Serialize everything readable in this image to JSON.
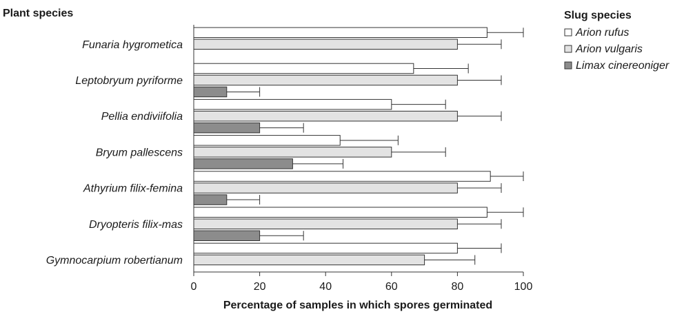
{
  "chart_data": {
    "type": "bar",
    "orientation": "horizontal",
    "title": "",
    "ylabel": "Plant species",
    "xlabel": "Percentage of samples in which spores germinated",
    "xlim": [
      0,
      100
    ],
    "xticks": [
      0,
      20,
      40,
      60,
      80,
      100
    ],
    "categories": [
      "Funaria hygrometica",
      "Leptobryum pyriforme",
      "Pellia endiviifolia",
      "Bryum pallescens",
      "Athyrium filix-femina",
      "Dryopteris filix-mas",
      "Gymnocarpium robertianum"
    ],
    "legend_title": "Slug species",
    "legend_position": "top-right",
    "grid": false,
    "error_bars": true,
    "series": [
      {
        "name": "Arion rufus",
        "color": "#ffffff",
        "values": [
          89,
          66.7,
          60,
          44.4,
          90,
          89,
          80
        ],
        "errors": [
          11,
          16.6,
          16.4,
          17.6,
          10,
          11,
          13.3
        ]
      },
      {
        "name": "Arion vulgaris",
        "color": "#e3e3e3",
        "values": [
          80,
          80,
          80,
          60,
          80,
          80,
          70
        ],
        "errors": [
          13.3,
          13.3,
          13.3,
          16.4,
          13.3,
          13.3,
          15.3
        ]
      },
      {
        "name": "Limax cinereoniger",
        "color": "#8c8c8c",
        "values": [
          0,
          10,
          20,
          30,
          10,
          20,
          0
        ],
        "errors": [
          0,
          10,
          13.3,
          15.3,
          10,
          13.3,
          0
        ]
      }
    ]
  }
}
